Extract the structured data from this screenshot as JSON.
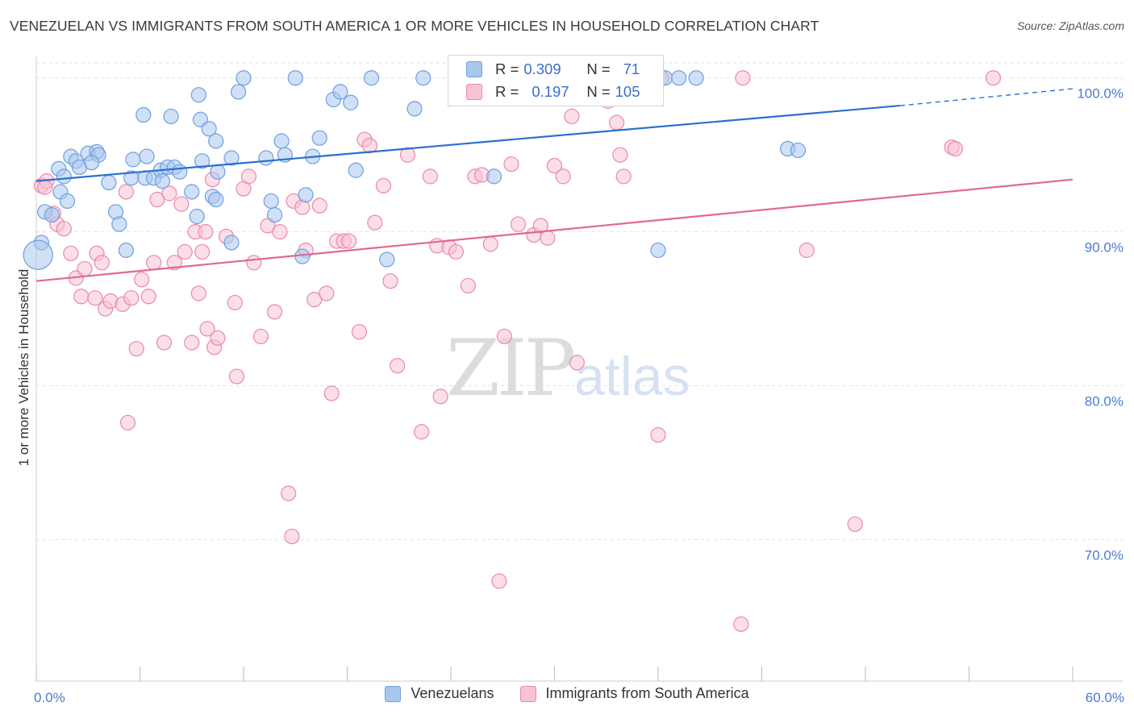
{
  "title": "VENEZUELAN VS IMMIGRANTS FROM SOUTH AMERICA 1 OR MORE VEHICLES IN HOUSEHOLD CORRELATION CHART",
  "source": "Source: ZipAtlas.com",
  "watermark": {
    "zip": "ZIP",
    "atlas": "atlas"
  },
  "colors": {
    "blue": "#6f9fe0",
    "blue_fill": "#a9c6ee",
    "blue_line": "#2b6fd0",
    "pink": "#e98aa8",
    "pink_fill": "#f7c3d3",
    "pink_line": "#e06890",
    "tick_text": "#4a7bd0",
    "grid": "#e2e2e2"
  },
  "legend": {
    "r_label": "R =",
    "n_label": "N =",
    "series": [
      {
        "r": "0.309",
        "n": "71"
      },
      {
        "r": "0.197",
        "n": "105"
      }
    ]
  },
  "chart_data": {
    "type": "scatter",
    "title": "VENEZUELAN VS IMMIGRANTS FROM SOUTH AMERICA 1 OR MORE VEHICLES IN HOUSEHOLD CORRELATION CHART",
    "xlabel": "",
    "ylabel": "1 or more Vehicles in Household",
    "xlim": [
      0,
      60
    ],
    "ylim": [
      60.8,
      101.4
    ],
    "x_tick_labels": [
      "0.0%",
      "60.0%"
    ],
    "y_ticks": [
      70,
      80,
      90,
      100
    ],
    "y_tick_labels": [
      "70.0%",
      "80.0%",
      "90.0%",
      "100.0%"
    ],
    "grid": true,
    "legend_position": "top-center",
    "series": [
      {
        "name": "Venezuelans",
        "color": "blue",
        "trend": {
          "x0": 0,
          "y0": 93.3,
          "x1": 50,
          "y1": 98.2,
          "dash_to_x": 60,
          "dash_to_y": 99.3
        },
        "points": [
          [
            0.3,
            89.3
          ],
          [
            0.5,
            91.3
          ],
          [
            0.9,
            91.1
          ],
          [
            1.3,
            94.1
          ],
          [
            1.4,
            92.6
          ],
          [
            1.8,
            92.0
          ],
          [
            1.6,
            93.6
          ],
          [
            2.0,
            94.9
          ],
          [
            2.3,
            94.6
          ],
          [
            2.5,
            94.2
          ],
          [
            3.0,
            95.1
          ],
          [
            3.5,
            95.2
          ],
          [
            3.6,
            95.0
          ],
          [
            4.2,
            93.2
          ],
          [
            4.6,
            91.3
          ],
          [
            4.8,
            90.5
          ],
          [
            5.2,
            88.8
          ],
          [
            5.5,
            93.5
          ],
          [
            5.6,
            94.7
          ],
          [
            6.3,
            93.5
          ],
          [
            6.4,
            94.9
          ],
          [
            6.8,
            93.5
          ],
          [
            7.2,
            94.0
          ],
          [
            7.3,
            93.3
          ],
          [
            7.6,
            94.2
          ],
          [
            8.0,
            94.2
          ],
          [
            9.0,
            92.6
          ],
          [
            9.3,
            91.0
          ],
          [
            9.6,
            94.6
          ],
          [
            10.2,
            92.3
          ],
          [
            10.5,
            93.9
          ],
          [
            10.4,
            92.1
          ],
          [
            6.2,
            97.6
          ],
          [
            7.8,
            97.5
          ],
          [
            9.4,
            98.9
          ],
          [
            9.5,
            97.3
          ],
          [
            10.0,
            96.7
          ],
          [
            10.4,
            95.9
          ],
          [
            11.3,
            94.8
          ],
          [
            11.3,
            89.3
          ],
          [
            11.7,
            99.1
          ],
          [
            12.0,
            100.0
          ],
          [
            13.3,
            94.8
          ],
          [
            13.6,
            92.0
          ],
          [
            13.8,
            91.1
          ],
          [
            14.2,
            95.9
          ],
          [
            14.4,
            95.0
          ],
          [
            15.0,
            100.0
          ],
          [
            15.4,
            88.4
          ],
          [
            15.6,
            92.4
          ],
          [
            16.0,
            94.9
          ],
          [
            16.4,
            96.1
          ],
          [
            17.2,
            98.6
          ],
          [
            17.6,
            99.1
          ],
          [
            18.2,
            98.4
          ],
          [
            18.5,
            94.0
          ],
          [
            19.4,
            100.0
          ],
          [
            20.3,
            88.2
          ],
          [
            21.9,
            98.0
          ],
          [
            22.4,
            100.0
          ],
          [
            25.4,
            100.0
          ],
          [
            26.5,
            93.6
          ],
          [
            36.4,
            100.0
          ],
          [
            37.2,
            100.0
          ],
          [
            38.2,
            100.0
          ],
          [
            36.0,
            88.8
          ],
          [
            43.5,
            95.4
          ],
          [
            44.1,
            95.3
          ],
          [
            0.1,
            88.5
          ],
          [
            3.2,
            94.5
          ],
          [
            8.3,
            93.9
          ]
        ],
        "big_point": [
          0.1,
          88.5
        ]
      },
      {
        "name": "Immigrants from South America",
        "color": "pink",
        "trend": {
          "x0": 0,
          "y0": 86.8,
          "x1": 60,
          "y1": 93.4
        },
        "points": [
          [
            0.3,
            93.0
          ],
          [
            0.6,
            93.3
          ],
          [
            1.0,
            91.2
          ],
          [
            1.2,
            90.5
          ],
          [
            1.6,
            90.2
          ],
          [
            2.0,
            88.6
          ],
          [
            2.3,
            87.0
          ],
          [
            2.6,
            85.8
          ],
          [
            2.8,
            87.6
          ],
          [
            3.4,
            85.7
          ],
          [
            3.5,
            88.6
          ],
          [
            3.8,
            88.0
          ],
          [
            4.0,
            85.0
          ],
          [
            4.3,
            85.5
          ],
          [
            5.0,
            85.3
          ],
          [
            5.2,
            92.6
          ],
          [
            5.5,
            85.7
          ],
          [
            5.8,
            82.4
          ],
          [
            5.3,
            77.6
          ],
          [
            6.1,
            86.9
          ],
          [
            6.5,
            85.8
          ],
          [
            6.8,
            88.0
          ],
          [
            7.0,
            92.1
          ],
          [
            7.4,
            82.8
          ],
          [
            7.7,
            92.5
          ],
          [
            8.0,
            88.0
          ],
          [
            8.4,
            91.8
          ],
          [
            8.6,
            88.7
          ],
          [
            9.0,
            82.8
          ],
          [
            9.2,
            90.0
          ],
          [
            9.4,
            86.0
          ],
          [
            9.6,
            88.7
          ],
          [
            10.2,
            93.4
          ],
          [
            9.9,
            83.7
          ],
          [
            10.3,
            82.5
          ],
          [
            10.5,
            83.1
          ],
          [
            11.0,
            89.7
          ],
          [
            11.5,
            85.4
          ],
          [
            11.6,
            80.6
          ],
          [
            12.0,
            92.8
          ],
          [
            12.3,
            93.6
          ],
          [
            12.6,
            88.0
          ],
          [
            13.0,
            83.2
          ],
          [
            13.4,
            90.4
          ],
          [
            13.8,
            84.8
          ],
          [
            14.1,
            90.0
          ],
          [
            14.6,
            73.0
          ],
          [
            14.8,
            70.2
          ],
          [
            14.9,
            92.0
          ],
          [
            15.4,
            91.6
          ],
          [
            15.6,
            88.8
          ],
          [
            16.1,
            85.6
          ],
          [
            16.4,
            91.7
          ],
          [
            16.8,
            86.0
          ],
          [
            17.1,
            79.5
          ],
          [
            17.4,
            89.4
          ],
          [
            17.8,
            89.4
          ],
          [
            18.1,
            89.4
          ],
          [
            18.7,
            83.5
          ],
          [
            19.0,
            96.0
          ],
          [
            19.3,
            95.6
          ],
          [
            19.6,
            90.6
          ],
          [
            20.1,
            93.0
          ],
          [
            20.5,
            86.8
          ],
          [
            20.9,
            81.3
          ],
          [
            21.5,
            95.0
          ],
          [
            22.3,
            77.0
          ],
          [
            22.8,
            93.6
          ],
          [
            23.2,
            89.1
          ],
          [
            23.4,
            79.3
          ],
          [
            23.9,
            89.0
          ],
          [
            24.3,
            88.7
          ],
          [
            25.0,
            86.5
          ],
          [
            25.4,
            93.6
          ],
          [
            25.8,
            93.7
          ],
          [
            26.3,
            89.2
          ],
          [
            26.8,
            67.3
          ],
          [
            27.1,
            83.2
          ],
          [
            27.5,
            94.4
          ],
          [
            27.9,
            90.5
          ],
          [
            28.8,
            89.8
          ],
          [
            29.2,
            90.4
          ],
          [
            29.6,
            89.6
          ],
          [
            30.0,
            94.3
          ],
          [
            30.5,
            93.6
          ],
          [
            31.0,
            97.5
          ],
          [
            31.3,
            81.5
          ],
          [
            32.8,
            100.0
          ],
          [
            33.1,
            98.5
          ],
          [
            33.6,
            97.1
          ],
          [
            33.8,
            95.0
          ],
          [
            34.0,
            93.6
          ],
          [
            36.2,
            100.0
          ],
          [
            36.0,
            76.8
          ],
          [
            40.8,
            64.5
          ],
          [
            40.9,
            100.0
          ],
          [
            44.6,
            88.8
          ],
          [
            47.4,
            71.0
          ],
          [
            53.0,
            95.5
          ],
          [
            53.2,
            95.4
          ],
          [
            55.4,
            100.0
          ],
          [
            0.5,
            92.9
          ],
          [
            9.8,
            90.0
          ],
          [
            25.0,
            100.0
          ],
          [
            27.2,
            100.0
          ]
        ]
      }
    ]
  }
}
